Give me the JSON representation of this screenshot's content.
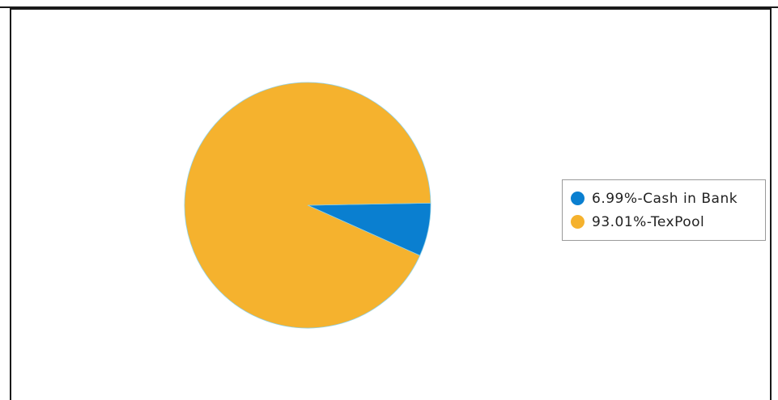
{
  "chart_data": {
    "type": "pie",
    "title": "",
    "slices": [
      {
        "label": "Cash in Bank",
        "value": 6.99,
        "legend_text": "6.99%-Cash in Bank",
        "color": "#0a7fd0"
      },
      {
        "label": "TexPool",
        "value": 93.01,
        "legend_text": "93.01%-TexPool",
        "color": "#f5b22e"
      }
    ],
    "legend": {
      "placement": "right",
      "entries": [
        "6.99%-Cash in Bank",
        "93.01%-TexPool"
      ]
    },
    "start_angle": "3 o'clock",
    "direction": "clockwise"
  }
}
